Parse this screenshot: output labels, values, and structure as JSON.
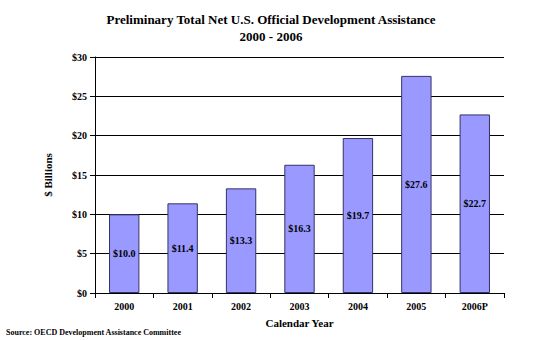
{
  "chart_data": {
    "type": "bar",
    "title": "Preliminary Total Net U.S. Official Development Assistance",
    "subtitle": "2000 - 2006",
    "x_label": "Calendar Year",
    "y_label": "$ Billions",
    "annotations": [
      "Source: OECD Development Assistance Committee"
    ],
    "categories": [
      "2000",
      "2001",
      "2002",
      "2003",
      "2004",
      "2005",
      "2006P"
    ],
    "values": [
      10.0,
      11.4,
      13.3,
      16.3,
      19.7,
      27.6,
      22.7
    ],
    "value_labels": [
      "$10.0",
      "$11.4",
      "$13.3",
      "$16.3",
      "$19.7",
      "$27.6",
      "$22.7"
    ],
    "data_labels": true,
    "color": "#9999ff",
    "ylim": [
      0,
      30
    ],
    "yticks": [
      {
        "value": 0,
        "label": "$0"
      },
      {
        "value": 5,
        "label": "$5"
      },
      {
        "value": 10,
        "label": "$10"
      },
      {
        "value": 15,
        "label": "$15"
      },
      {
        "value": 20,
        "label": "$20"
      },
      {
        "value": 25,
        "label": "$25"
      },
      {
        "value": 30,
        "label": "$30"
      }
    ],
    "grid": true
  }
}
